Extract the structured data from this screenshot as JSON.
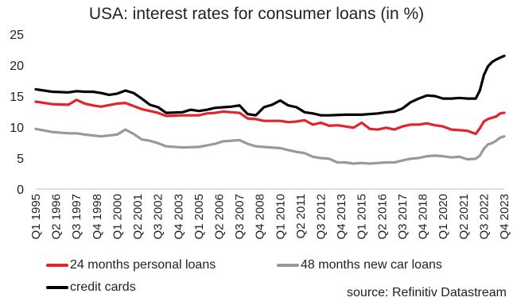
{
  "chart_data": {
    "type": "line",
    "title": "USA: interest rates for consumer loans (in %)",
    "ylim": [
      0,
      25
    ],
    "yticks": [
      0,
      5,
      10,
      15,
      20,
      25
    ],
    "x_start_quarter": "Q1 1995",
    "x_end_quarter": "Q4 2023",
    "xtick_labels": [
      "Q1 1995",
      "Q2 1996",
      "Q3 1997",
      "Q4 1998",
      "Q1 2000",
      "Q2 2001",
      "Q3 2002",
      "Q4 2003",
      "Q1 2005",
      "Q2 2006",
      "Q3 2007",
      "Q4 2008",
      "Q1 2010",
      "Q2 2011",
      "Q3 2012",
      "Q4 2013",
      "Q1 2015",
      "Q2 2016",
      "Q3 2017",
      "Q4 2018",
      "Q1 2020",
      "Q2 2021",
      "Q3 2022",
      "Q4 2023"
    ],
    "grid": false,
    "legend_position": "bottom",
    "series": [
      {
        "name": "24 months personal loans",
        "color": "#e3242b",
        "points": [
          [
            "Q1 1995",
            14.1
          ],
          [
            "Q1 1996",
            13.7
          ],
          [
            "Q1 1997",
            13.6
          ],
          [
            "Q3 1997",
            14.4
          ],
          [
            "Q1 1998",
            13.8
          ],
          [
            "Q3 1998",
            13.5
          ],
          [
            "Q1 1999",
            13.3
          ],
          [
            "Q1 2000",
            13.8
          ],
          [
            "Q3 2000",
            13.9
          ],
          [
            "Q1 2001",
            13.4
          ],
          [
            "Q3 2001",
            12.9
          ],
          [
            "Q1 2002",
            12.6
          ],
          [
            "Q3 2002",
            12.3
          ],
          [
            "Q1 2003",
            11.8
          ],
          [
            "Q1 2004",
            11.9
          ],
          [
            "Q1 2005",
            11.9
          ],
          [
            "Q3 2005",
            12.2
          ],
          [
            "Q1 2006",
            12.3
          ],
          [
            "Q3 2006",
            12.5
          ],
          [
            "Q1 2007",
            12.4
          ],
          [
            "Q3 2007",
            12.3
          ],
          [
            "Q1 2008",
            11.4
          ],
          [
            "Q3 2008",
            11.3
          ],
          [
            "Q1 2009",
            11.0
          ],
          [
            "Q1 2010",
            11.0
          ],
          [
            "Q3 2010",
            10.8
          ],
          [
            "Q1 2011",
            10.9
          ],
          [
            "Q3 2011",
            11.1
          ],
          [
            "Q1 2012",
            10.4
          ],
          [
            "Q3 2012",
            10.7
          ],
          [
            "Q1 2013",
            10.2
          ],
          [
            "Q3 2013",
            10.3
          ],
          [
            "Q1 2014",
            10.1
          ],
          [
            "Q3 2014",
            9.9
          ],
          [
            "Q1 2015",
            10.7
          ],
          [
            "Q3 2015",
            9.7
          ],
          [
            "Q1 2016",
            9.6
          ],
          [
            "Q3 2016",
            9.9
          ],
          [
            "Q1 2017",
            9.6
          ],
          [
            "Q3 2017",
            10.1
          ],
          [
            "Q1 2018",
            10.4
          ],
          [
            "Q3 2018",
            10.4
          ],
          [
            "Q1 2019",
            10.6
          ],
          [
            "Q3 2019",
            10.3
          ],
          [
            "Q1 2020",
            10.1
          ],
          [
            "Q3 2020",
            9.6
          ],
          [
            "Q1 2021",
            9.5
          ],
          [
            "Q3 2021",
            9.4
          ],
          [
            "Q1 2022",
            8.9
          ],
          [
            "Q2 2022",
            9.8
          ],
          [
            "Q3 2022",
            10.9
          ],
          [
            "Q4 2022",
            11.3
          ],
          [
            "Q1 2023",
            11.5
          ],
          [
            "Q2 2023",
            11.7
          ],
          [
            "Q3 2023",
            12.2
          ],
          [
            "Q4 2023",
            12.3
          ]
        ]
      },
      {
        "name": "48 months new car loans",
        "color": "#999999",
        "points": [
          [
            "Q1 1995",
            9.7
          ],
          [
            "Q1 1996",
            9.2
          ],
          [
            "Q1 1997",
            9.0
          ],
          [
            "Q3 1997",
            9.0
          ],
          [
            "Q1 1998",
            8.8
          ],
          [
            "Q1 1999",
            8.5
          ],
          [
            "Q1 2000",
            8.8
          ],
          [
            "Q3 2000",
            9.6
          ],
          [
            "Q1 2001",
            8.9
          ],
          [
            "Q3 2001",
            8.0
          ],
          [
            "Q1 2002",
            7.8
          ],
          [
            "Q3 2002",
            7.4
          ],
          [
            "Q1 2003",
            6.9
          ],
          [
            "Q1 2004",
            6.7
          ],
          [
            "Q1 2005",
            6.8
          ],
          [
            "Q1 2006",
            7.3
          ],
          [
            "Q3 2006",
            7.7
          ],
          [
            "Q1 2007",
            7.8
          ],
          [
            "Q3 2007",
            7.9
          ],
          [
            "Q1 2008",
            7.3
          ],
          [
            "Q3 2008",
            6.9
          ],
          [
            "Q1 2009",
            6.8
          ],
          [
            "Q1 2010",
            6.6
          ],
          [
            "Q3 2010",
            6.3
          ],
          [
            "Q1 2011",
            6.0
          ],
          [
            "Q3 2011",
            5.8
          ],
          [
            "Q1 2012",
            5.2
          ],
          [
            "Q3 2012",
            5.0
          ],
          [
            "Q1 2013",
            4.9
          ],
          [
            "Q3 2013",
            4.3
          ],
          [
            "Q1 2014",
            4.3
          ],
          [
            "Q3 2014",
            4.1
          ],
          [
            "Q1 2015",
            4.2
          ],
          [
            "Q3 2015",
            4.1
          ],
          [
            "Q1 2016",
            4.2
          ],
          [
            "Q3 2016",
            4.3
          ],
          [
            "Q1 2017",
            4.3
          ],
          [
            "Q3 2017",
            4.6
          ],
          [
            "Q1 2018",
            4.9
          ],
          [
            "Q3 2018",
            5.0
          ],
          [
            "Q1 2019",
            5.3
          ],
          [
            "Q3 2019",
            5.4
          ],
          [
            "Q1 2020",
            5.3
          ],
          [
            "Q3 2020",
            5.1
          ],
          [
            "Q1 2021",
            5.2
          ],
          [
            "Q3 2021",
            4.8
          ],
          [
            "Q1 2022",
            4.9
          ],
          [
            "Q2 2022",
            5.4
          ],
          [
            "Q3 2022",
            6.5
          ],
          [
            "Q4 2022",
            7.2
          ],
          [
            "Q1 2023",
            7.4
          ],
          [
            "Q2 2023",
            7.8
          ],
          [
            "Q3 2023",
            8.3
          ],
          [
            "Q4 2023",
            8.5
          ]
        ]
      },
      {
        "name": "credit cards",
        "color": "#000000",
        "points": [
          [
            "Q1 1995",
            16.1
          ],
          [
            "Q1 1996",
            15.7
          ],
          [
            "Q1 1997",
            15.6
          ],
          [
            "Q3 1997",
            15.8
          ],
          [
            "Q1 1998",
            15.7
          ],
          [
            "Q3 1998",
            15.7
          ],
          [
            "Q1 1999",
            15.5
          ],
          [
            "Q3 1999",
            15.2
          ],
          [
            "Q1 2000",
            15.4
          ],
          [
            "Q3 2000",
            15.9
          ],
          [
            "Q1 2001",
            15.5
          ],
          [
            "Q3 2001",
            14.6
          ],
          [
            "Q1 2002",
            13.6
          ],
          [
            "Q3 2002",
            13.2
          ],
          [
            "Q1 2003",
            12.3
          ],
          [
            "Q1 2004",
            12.4
          ],
          [
            "Q3 2004",
            12.8
          ],
          [
            "Q1 2005",
            12.6
          ],
          [
            "Q3 2005",
            12.8
          ],
          [
            "Q1 2006",
            13.1
          ],
          [
            "Q3 2006",
            13.2
          ],
          [
            "Q1 2007",
            13.3
          ],
          [
            "Q3 2007",
            13.5
          ],
          [
            "Q1 2008",
            12.1
          ],
          [
            "Q3 2008",
            11.9
          ],
          [
            "Q1 2009",
            13.2
          ],
          [
            "Q3 2009",
            13.6
          ],
          [
            "Q1 2010",
            14.3
          ],
          [
            "Q3 2010",
            13.5
          ],
          [
            "Q1 2011",
            13.2
          ],
          [
            "Q3 2011",
            12.4
          ],
          [
            "Q1 2012",
            12.2
          ],
          [
            "Q3 2012",
            11.9
          ],
          [
            "Q1 2013",
            11.9
          ],
          [
            "Q1 2014",
            12.0
          ],
          [
            "Q1 2015",
            12.0
          ],
          [
            "Q1 2016",
            12.2
          ],
          [
            "Q3 2016",
            12.4
          ],
          [
            "Q1 2017",
            12.5
          ],
          [
            "Q3 2017",
            13.0
          ],
          [
            "Q1 2018",
            14.0
          ],
          [
            "Q3 2018",
            14.6
          ],
          [
            "Q1 2019",
            15.1
          ],
          [
            "Q3 2019",
            15.0
          ],
          [
            "Q1 2020",
            14.6
          ],
          [
            "Q3 2020",
            14.6
          ],
          [
            "Q1 2021",
            14.7
          ],
          [
            "Q3 2021",
            14.6
          ],
          [
            "Q1 2022",
            14.6
          ],
          [
            "Q2 2022",
            15.9
          ],
          [
            "Q3 2022",
            18.4
          ],
          [
            "Q4 2022",
            19.8
          ],
          [
            "Q1 2023",
            20.5
          ],
          [
            "Q2 2023",
            20.9
          ],
          [
            "Q3 2023",
            21.2
          ],
          [
            "Q4 2023",
            21.5
          ]
        ]
      }
    ]
  },
  "source_text": "source: Refinitiv Datastream"
}
